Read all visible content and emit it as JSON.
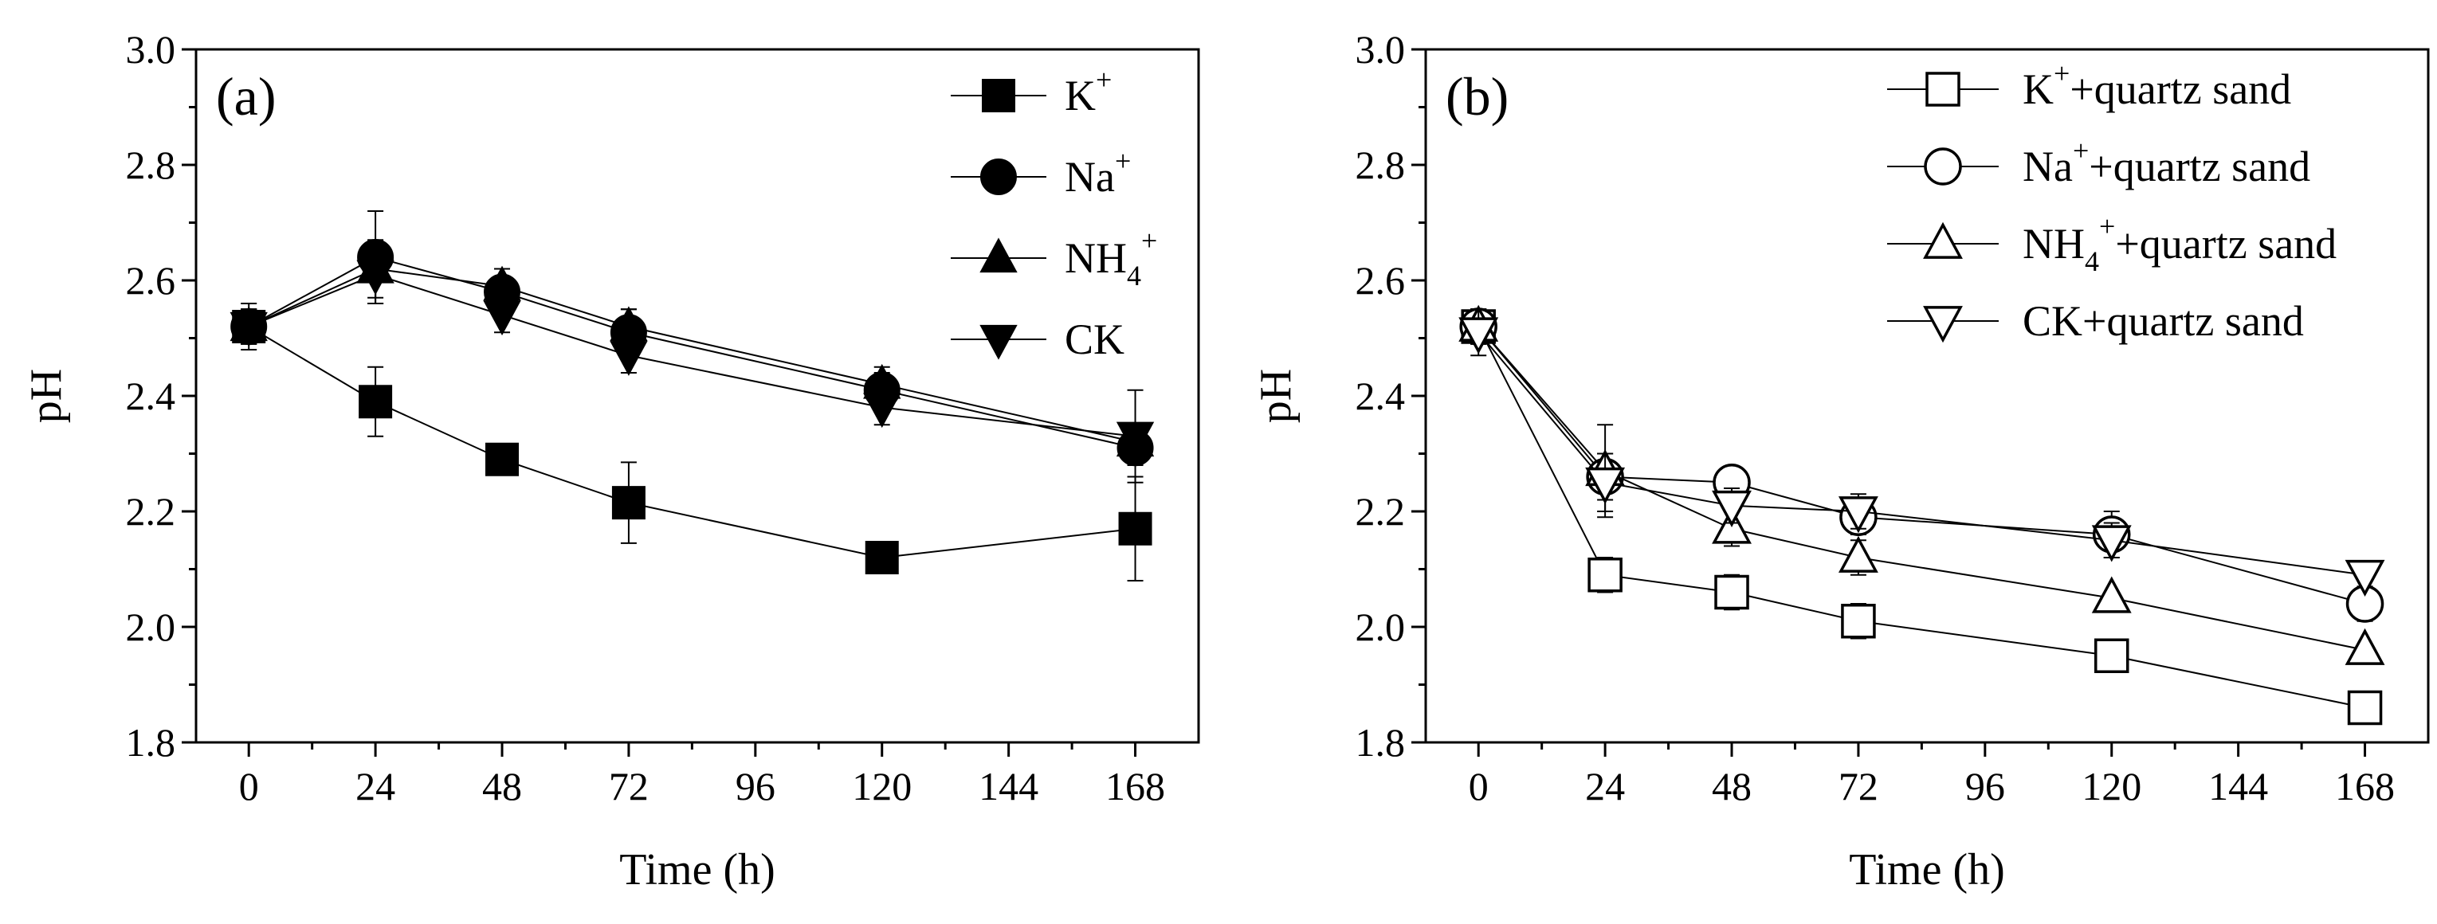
{
  "chart_data": [
    {
      "type": "line",
      "panel_label": "(a)",
      "xlabel": "Time (h)",
      "ylabel": "pH",
      "xlim": [
        -10,
        180
      ],
      "ylim": [
        1.8,
        3.0
      ],
      "xticks": [
        0,
        24,
        48,
        72,
        96,
        120,
        144,
        168
      ],
      "yticks": [
        1.8,
        2.0,
        2.2,
        2.4,
        2.6,
        2.8,
        3.0
      ],
      "x": [
        0,
        24,
        48,
        72,
        120,
        168
      ],
      "legend_position": "top-right",
      "series": [
        {
          "name": "K+",
          "label_base": "K",
          "label_sub": "",
          "label_sup": "+",
          "label_tail": "",
          "marker": "square",
          "filled": true,
          "values": [
            2.52,
            2.39,
            2.29,
            2.215,
            2.12,
            2.17
          ],
          "errors": [
            0.03,
            0.06,
            0.01,
            0.07,
            0.015,
            0.09
          ]
        },
        {
          "name": "Na+",
          "label_base": "Na",
          "label_sub": "",
          "label_sup": "+",
          "label_tail": "",
          "marker": "circle",
          "filled": true,
          "values": [
            2.52,
            2.64,
            2.58,
            2.51,
            2.41,
            2.31
          ],
          "errors": [
            0.03,
            0.08,
            0.04,
            0.04,
            0.03,
            0.03
          ]
        },
        {
          "name": "NH4+",
          "label_base": "NH",
          "label_sub": "4",
          "label_sup": "+",
          "label_tail": "",
          "marker": "triangle-up",
          "filled": true,
          "values": [
            2.52,
            2.62,
            2.59,
            2.52,
            2.42,
            2.32
          ],
          "errors": [
            0.03,
            0.05,
            0.03,
            0.03,
            0.03,
            0.03
          ]
        },
        {
          "name": "CK",
          "label_base": "CK",
          "label_sub": "",
          "label_sup": "",
          "label_tail": "",
          "marker": "triangle-down",
          "filled": true,
          "values": [
            2.52,
            2.61,
            2.54,
            2.47,
            2.38,
            2.33
          ],
          "errors": [
            0.04,
            0.05,
            0.03,
            0.03,
            0.03,
            0.08
          ]
        }
      ]
    },
    {
      "type": "line",
      "panel_label": "(b)",
      "xlabel": "Time (h)",
      "ylabel": "pH",
      "xlim": [
        -10,
        180
      ],
      "ylim": [
        1.8,
        3.0
      ],
      "xticks": [
        0,
        24,
        48,
        72,
        96,
        120,
        144,
        168
      ],
      "yticks": [
        1.8,
        2.0,
        2.2,
        2.4,
        2.6,
        2.8,
        3.0
      ],
      "x": [
        0,
        24,
        48,
        72,
        120,
        168
      ],
      "legend_position": "top-right",
      "series": [
        {
          "name": "K++quartz sand",
          "label_base": "K",
          "label_sub": "",
          "label_sup": "+",
          "label_tail": "+quartz sand",
          "marker": "square",
          "filled": false,
          "values": [
            2.52,
            2.09,
            2.06,
            2.01,
            1.95,
            1.86
          ],
          "errors": [
            0.03,
            0.03,
            0.03,
            0.03,
            0.01,
            0.01
          ]
        },
        {
          "name": "Na++quartz sand",
          "label_base": "Na",
          "label_sub": "",
          "label_sup": "+",
          "label_tail": "+quartz sand",
          "marker": "circle",
          "filled": false,
          "values": [
            2.52,
            2.26,
            2.25,
            2.19,
            2.16,
            2.04
          ],
          "errors": [
            0.03,
            0.04,
            0.02,
            0.03,
            0.04,
            0.03
          ]
        },
        {
          "name": "NH4++quartz sand",
          "label_base": "NH",
          "label_sub": "4",
          "label_sup": "+",
          "label_tail": "+quartz sand",
          "marker": "triangle-up",
          "filled": false,
          "values": [
            2.52,
            2.27,
            2.17,
            2.12,
            2.05,
            1.96
          ],
          "errors": [
            0.03,
            0.08,
            0.03,
            0.03,
            0.01,
            0.01
          ]
        },
        {
          "name": "CK+quartz sand",
          "label_base": "CK",
          "label_sub": "",
          "label_sup": "",
          "label_tail": "+quartz sand",
          "marker": "triangle-down",
          "filled": false,
          "values": [
            2.51,
            2.25,
            2.21,
            2.2,
            2.15,
            2.09
          ],
          "errors": [
            0.04,
            0.05,
            0.03,
            0.03,
            0.03,
            0.01
          ]
        }
      ]
    }
  ]
}
